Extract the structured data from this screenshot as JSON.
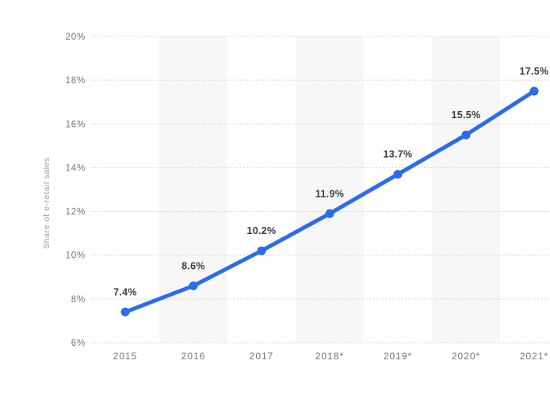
{
  "chart": {
    "y_axis_title": "Share of e-retail sales"
  },
  "chart_data": {
    "type": "line",
    "categories": [
      "2015",
      "2016",
      "2017",
      "2018*",
      "2019*",
      "2020*",
      "2021*"
    ],
    "values": [
      7.4,
      8.6,
      10.2,
      11.9,
      13.7,
      15.5,
      17.5
    ],
    "data_labels": [
      "7.4%",
      "8.6%",
      "10.2%",
      "11.9%",
      "13.7%",
      "15.5%",
      "17.5%"
    ],
    "title": "",
    "xlabel": "",
    "ylabel": "Share of e-retail sales",
    "ylim": [
      6,
      20
    ],
    "ytick_step": 2,
    "ytick_labels": [
      "6%",
      "8%",
      "10%",
      "12%",
      "14%",
      "16%",
      "18%",
      "20%"
    ],
    "grid": "horizontal-dotted",
    "legend_position": "none",
    "colors": {
      "line": "#2b6cea",
      "point": "#2b6cea",
      "band": "#f7f7f7",
      "gridline": "#c8c8c8",
      "tick_text": "#757575",
      "axis_title_text": "#9b9b9b",
      "data_label_text": "#3d3d3d",
      "background": "#ffffff"
    },
    "alternating_column_bands": [
      1,
      3,
      5
    ]
  }
}
